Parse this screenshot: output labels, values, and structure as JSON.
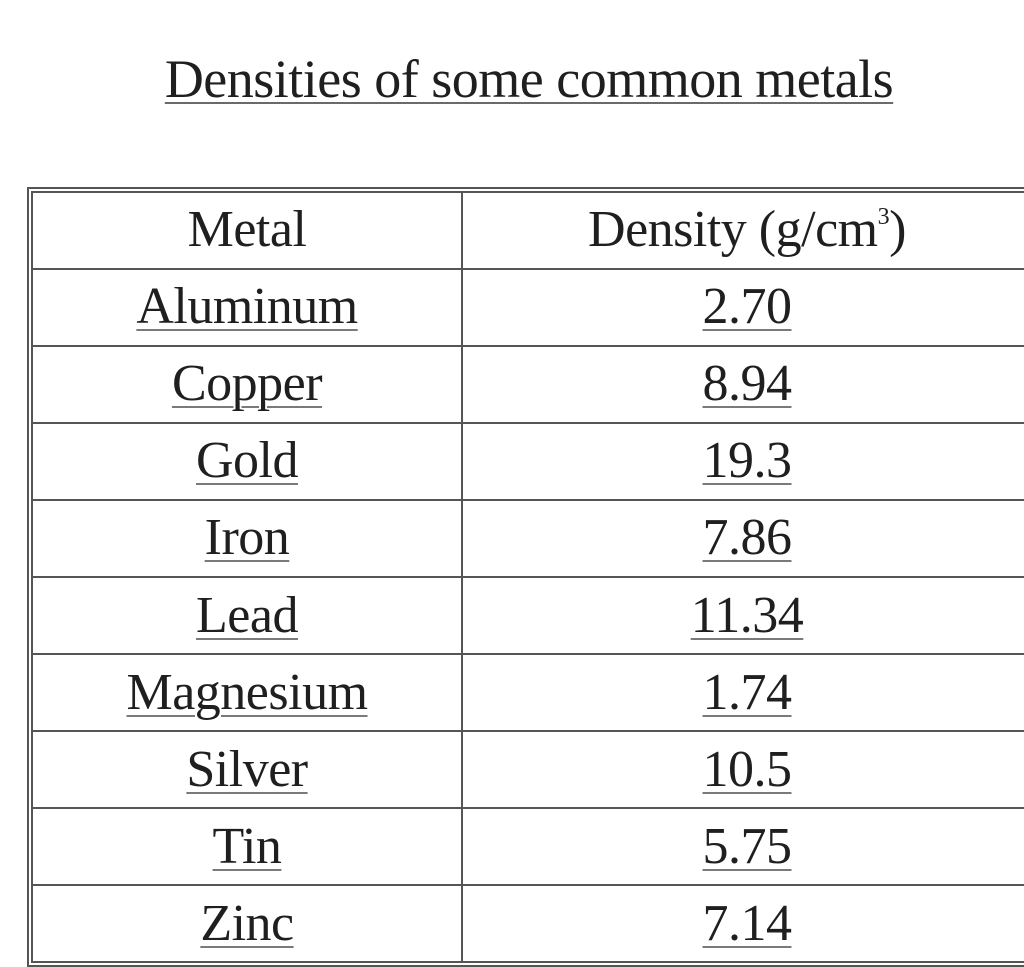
{
  "title": "Densities of some common metals",
  "table": {
    "headers": {
      "metal": "Metal",
      "density_prefix": "Density (g/cm",
      "density_superscript": "3",
      "density_suffix": ")"
    },
    "rows": [
      {
        "metal": "Aluminum",
        "density": "2.70"
      },
      {
        "metal": "Copper",
        "density": "8.94"
      },
      {
        "metal": "Gold",
        "density": "19.3"
      },
      {
        "metal": "Iron",
        "density": "7.86"
      },
      {
        "metal": "Lead",
        "density": "11.34"
      },
      {
        "metal": "Magnesium",
        "density": "1.74"
      },
      {
        "metal": "Silver",
        "density": "10.5"
      },
      {
        "metal": "Tin",
        "density": "5.75"
      },
      {
        "metal": "Zinc",
        "density": "7.14"
      }
    ]
  }
}
